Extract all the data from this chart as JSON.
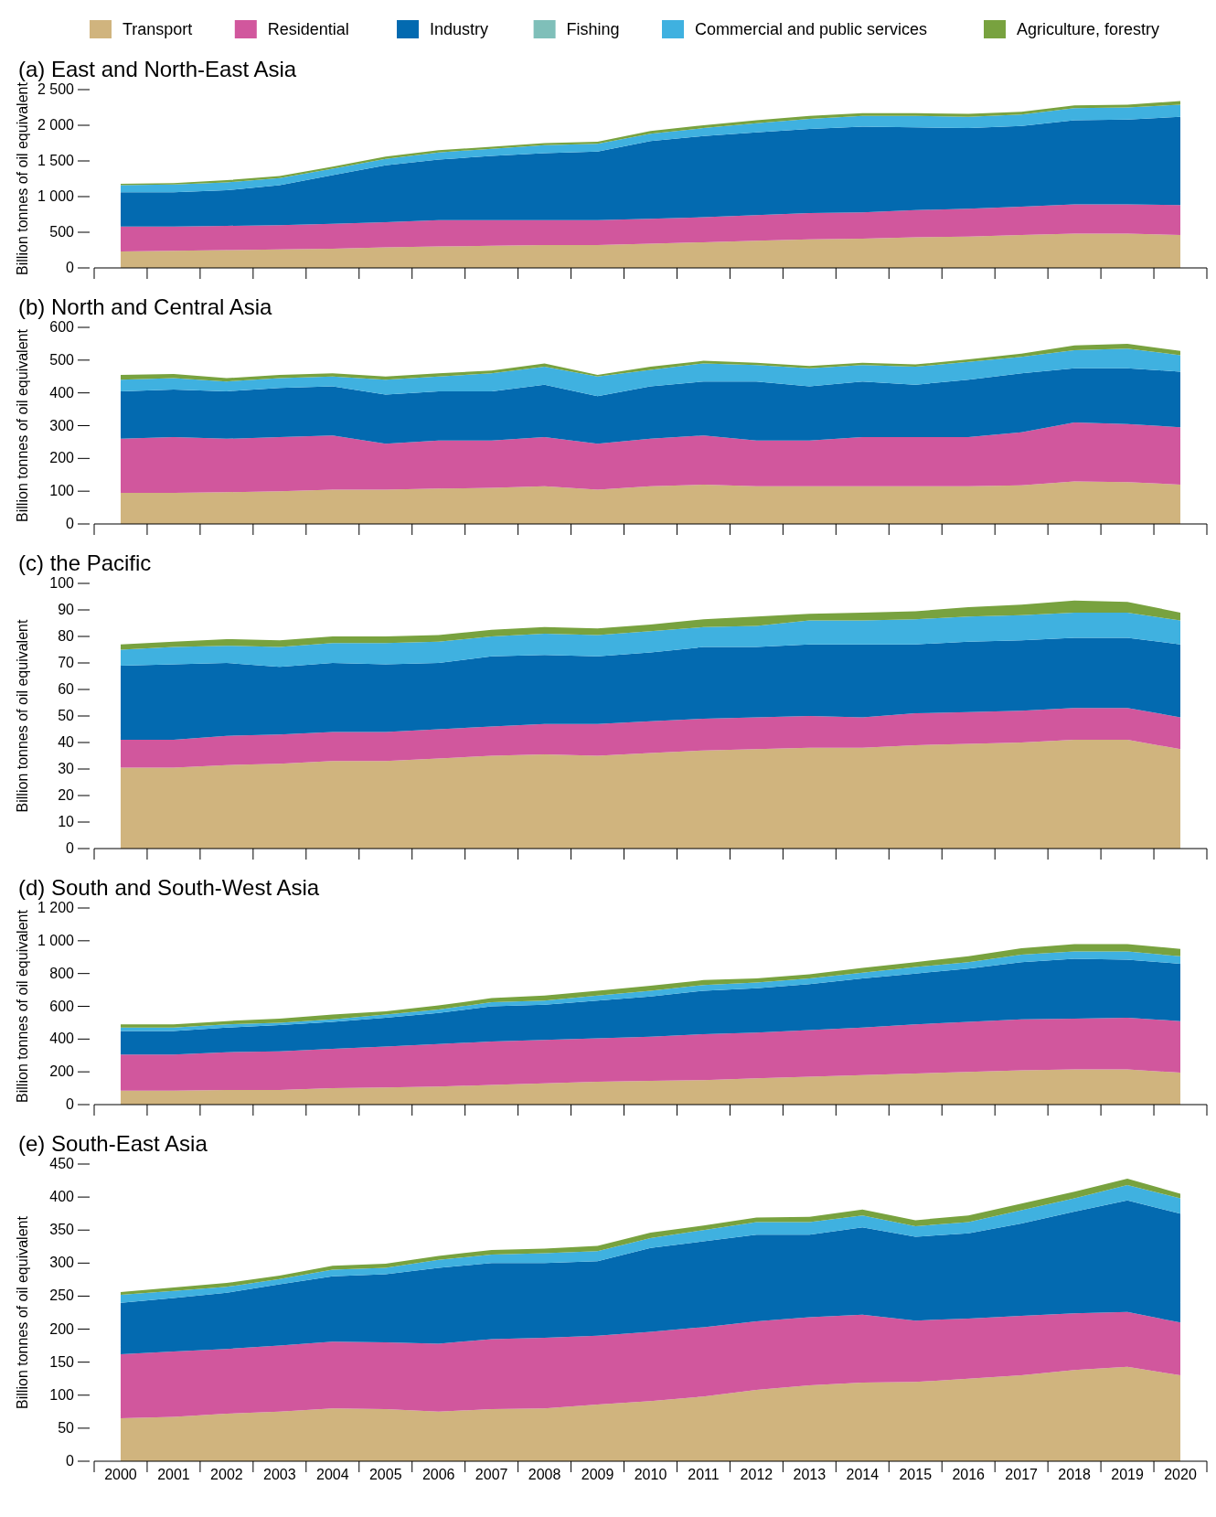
{
  "chart_data": [
    {
      "type": "area",
      "stacked": true,
      "title": "(a) East and North-East Asia",
      "ylabel": "Billion tonnes of oil equivalent",
      "legend": "top",
      "tick_labels": "y",
      "categories": [
        "2000",
        "2001",
        "2002",
        "2003",
        "2004",
        "2005",
        "2006",
        "2007",
        "2008",
        "2009",
        "2010",
        "2011",
        "2012",
        "2013",
        "2014",
        "2015",
        "2016",
        "2017",
        "2018",
        "2019",
        "2020"
      ],
      "ylim": [
        0,
        2500
      ],
      "yticks": [
        0,
        500,
        {
          "value": 1000,
          "label": "1 000"
        },
        {
          "value": 1500,
          "label": "1 500"
        },
        {
          "value": 2000,
          "label": "2 000"
        },
        {
          "value": 2500,
          "label": "2 500"
        }
      ],
      "series": [
        {
          "name": "Transport",
          "color": "#d0b47e",
          "values": [
            230,
            240,
            250,
            260,
            270,
            290,
            300,
            310,
            320,
            320,
            340,
            360,
            380,
            400,
            410,
            430,
            440,
            460,
            480,
            480,
            460
          ]
        },
        {
          "name": "Residential",
          "color": "#d1579d",
          "values": [
            350,
            340,
            340,
            340,
            350,
            350,
            370,
            360,
            350,
            350,
            350,
            350,
            360,
            370,
            370,
            380,
            390,
            400,
            410,
            410,
            420
          ]
        },
        {
          "name": "Industry",
          "color": "#036ab0",
          "values": [
            480,
            480,
            500,
            560,
            680,
            800,
            850,
            900,
            940,
            960,
            1090,
            1140,
            1160,
            1180,
            1200,
            1160,
            1130,
            1130,
            1180,
            1190,
            1240
          ]
        },
        {
          "name": "Fishing",
          "color": "#7fbfb9",
          "values": [
            null,
            null,
            null,
            null,
            null,
            null,
            null,
            null,
            null,
            null,
            null,
            null,
            null,
            null,
            null,
            null,
            null,
            null,
            null,
            null,
            null
          ]
        },
        {
          "name": "Commercial and public services",
          "color": "#3fb1e0",
          "values": [
            100,
            110,
            110,
            100,
            90,
            90,
            100,
            100,
            110,
            110,
            100,
            110,
            130,
            140,
            150,
            160,
            160,
            160,
            170,
            170,
            170
          ]
        },
        {
          "name": "Agriculture, forestry",
          "color": "#78a23f",
          "values": [
            20,
            20,
            30,
            30,
            30,
            30,
            30,
            30,
            30,
            30,
            40,
            40,
            40,
            40,
            40,
            40,
            40,
            40,
            40,
            40,
            50
          ]
        }
      ]
    },
    {
      "type": "area",
      "stacked": true,
      "title": "(b) North and Central Asia",
      "ylabel": "Billion tonnes of oil equivalent",
      "tick_labels": "y",
      "categories": [
        "2000",
        "2001",
        "2002",
        "2003",
        "2004",
        "2005",
        "2006",
        "2007",
        "2008",
        "2009",
        "2010",
        "2011",
        "2012",
        "2013",
        "2014",
        "2015",
        "2016",
        "2017",
        "2018",
        "2019",
        "2020"
      ],
      "ylim": [
        0,
        600
      ],
      "yticks": [
        0,
        100,
        200,
        300,
        400,
        500,
        600
      ],
      "series": [
        {
          "color": "#d0b47e",
          "values": [
            95,
            95,
            97,
            100,
            105,
            105,
            108,
            110,
            115,
            105,
            115,
            120,
            115,
            115,
            115,
            115,
            115,
            118,
            130,
            128,
            120
          ]
        },
        {
          "color": "#d1579d",
          "values": [
            165,
            170,
            163,
            165,
            165,
            140,
            147,
            145,
            150,
            140,
            145,
            150,
            140,
            140,
            150,
            150,
            150,
            162,
            180,
            177,
            175
          ]
        },
        {
          "color": "#036ab0",
          "values": [
            145,
            145,
            145,
            150,
            150,
            150,
            150,
            150,
            160,
            145,
            160,
            165,
            180,
            165,
            170,
            160,
            175,
            180,
            165,
            170,
            170
          ]
        },
        {
          "color": "#3fb1e0",
          "values": [
            35,
            35,
            30,
            30,
            30,
            45,
            45,
            55,
            55,
            60,
            50,
            55,
            50,
            55,
            50,
            55,
            55,
            50,
            55,
            60,
            50
          ]
        },
        {
          "color": "#78a23f",
          "values": [
            15,
            13,
            10,
            10,
            10,
            10,
            10,
            8,
            10,
            5,
            10,
            8,
            7,
            7,
            7,
            7,
            7,
            10,
            15,
            15,
            13
          ]
        }
      ]
    },
    {
      "type": "area",
      "stacked": true,
      "title": "(c) the Pacific",
      "ylabel": "Billion tonnes of oil equivalent",
      "tick_labels": "y",
      "categories": [
        "2000",
        "2001",
        "2002",
        "2003",
        "2004",
        "2005",
        "2006",
        "2007",
        "2008",
        "2009",
        "2010",
        "2011",
        "2012",
        "2013",
        "2014",
        "2015",
        "2016",
        "2017",
        "2018",
        "2019",
        "2020"
      ],
      "ylim": [
        0,
        100
      ],
      "yticks": [
        0,
        10,
        20,
        30,
        40,
        50,
        60,
        70,
        80,
        90,
        100
      ],
      "series": [
        {
          "color": "#d0b47e",
          "values": [
            30.5,
            30.5,
            31.5,
            32,
            33,
            33,
            34,
            35,
            35.5,
            35,
            36,
            37,
            37.5,
            38,
            38,
            39,
            39.5,
            40,
            41,
            41,
            37.5
          ]
        },
        {
          "color": "#d1579d",
          "values": [
            10.5,
            10.5,
            11,
            11,
            11,
            11,
            11,
            11,
            11.5,
            12,
            12,
            12,
            12,
            12,
            11.5,
            12,
            12,
            12,
            12,
            12,
            12
          ]
        },
        {
          "color": "#036ab0",
          "values": [
            28,
            28.5,
            27.5,
            25.5,
            26,
            25.5,
            25,
            26.5,
            26,
            25.5,
            26,
            27,
            26.5,
            27,
            27.5,
            26,
            26.5,
            26.5,
            26.5,
            26.5,
            27.5
          ]
        },
        {
          "color": "#3fb1e0",
          "values": [
            6,
            6.5,
            6.5,
            7.5,
            7.5,
            8,
            8,
            7.5,
            8,
            8,
            8,
            7.5,
            8,
            9,
            9,
            9.5,
            9.5,
            9.5,
            9.5,
            9.5,
            9
          ]
        },
        {
          "color": "#78a23f",
          "values": [
            2,
            2,
            2.5,
            2.5,
            2.5,
            2.5,
            2.5,
            2.5,
            2.5,
            2.5,
            2.5,
            3,
            3.5,
            2.5,
            3,
            3,
            3.5,
            4,
            4.5,
            4,
            3
          ]
        }
      ]
    },
    {
      "type": "area",
      "stacked": true,
      "title": "(d) South and South-West Asia",
      "ylabel": "Billion tonnes of oil equivalent",
      "tick_labels": "y",
      "categories": [
        "2000",
        "2001",
        "2002",
        "2003",
        "2004",
        "2005",
        "2006",
        "2007",
        "2008",
        "2009",
        "2010",
        "2011",
        "2012",
        "2013",
        "2014",
        "2015",
        "2016",
        "2017",
        "2018",
        "2019",
        "2020"
      ],
      "ylim": [
        0,
        1200
      ],
      "yticks": [
        0,
        200,
        400,
        600,
        800,
        {
          "value": 1000,
          "label": "1 000"
        },
        {
          "value": 1200,
          "label": "1 200"
        }
      ],
      "series": [
        {
          "color": "#d0b47e",
          "values": [
            85,
            85,
            90,
            90,
            100,
            105,
            110,
            120,
            130,
            140,
            145,
            150,
            160,
            170,
            180,
            190,
            200,
            210,
            215,
            215,
            195
          ]
        },
        {
          "color": "#d1579d",
          "values": [
            220,
            220,
            230,
            235,
            240,
            250,
            260,
            265,
            265,
            265,
            270,
            280,
            280,
            285,
            290,
            300,
            305,
            310,
            310,
            315,
            315
          ]
        },
        {
          "color": "#036ab0",
          "values": [
            145,
            145,
            150,
            160,
            165,
            175,
            190,
            215,
            215,
            230,
            245,
            265,
            270,
            280,
            300,
            310,
            325,
            350,
            365,
            355,
            350
          ]
        },
        {
          "color": "#3fb1e0",
          "values": [
            20,
            20,
            20,
            15,
            15,
            20,
            20,
            25,
            25,
            30,
            35,
            35,
            35,
            35,
            35,
            40,
            40,
            45,
            45,
            50,
            45
          ]
        },
        {
          "color": "#78a23f",
          "values": [
            20,
            20,
            20,
            25,
            30,
            20,
            25,
            25,
            30,
            30,
            30,
            30,
            25,
            25,
            30,
            30,
            35,
            40,
            45,
            45,
            45
          ]
        }
      ]
    },
    {
      "type": "area",
      "stacked": true,
      "title": "(e) South-East Asia",
      "ylabel": "Billion tonnes of oil equivalent",
      "categories": [
        "2000",
        "2001",
        "2002",
        "2003",
        "2004",
        "2005",
        "2006",
        "2007",
        "2008",
        "2009",
        "2010",
        "2011",
        "2012",
        "2013",
        "2014",
        "2015",
        "2016",
        "2017",
        "2018",
        "2019",
        "2020"
      ],
      "ylim": [
        0,
        450
      ],
      "yticks": [
        0,
        50,
        100,
        150,
        200,
        250,
        300,
        350,
        400,
        450
      ],
      "series": [
        {
          "color": "#d0b47e",
          "values": [
            65,
            67,
            72,
            75,
            80,
            79,
            75,
            79,
            80,
            86,
            91,
            98,
            108,
            115,
            119,
            120,
            125,
            130,
            138,
            143,
            130
          ]
        },
        {
          "color": "#d1579d",
          "values": [
            97,
            99,
            98,
            100,
            101,
            101,
            103,
            106,
            107,
            104,
            105,
            105,
            104,
            103,
            103,
            93,
            91,
            90,
            86,
            83,
            80
          ]
        },
        {
          "color": "#036ab0",
          "values": [
            78,
            81,
            85,
            93,
            99,
            103,
            115,
            115,
            113,
            113,
            127,
            130,
            131,
            125,
            132,
            127,
            129,
            140,
            154,
            169,
            165
          ]
        },
        {
          "color": "#3fb1e0",
          "values": [
            12,
            11,
            9,
            8,
            10,
            10,
            12,
            13,
            15,
            15,
            15,
            17,
            19,
            19,
            18,
            16,
            17,
            20,
            20,
            23,
            23
          ]
        },
        {
          "color": "#78a23f",
          "values": [
            4,
            5,
            6,
            5,
            6,
            6,
            6,
            7,
            7,
            8,
            8,
            7,
            7,
            8,
            9,
            9,
            10,
            10,
            10,
            10,
            7
          ]
        }
      ]
    }
  ]
}
